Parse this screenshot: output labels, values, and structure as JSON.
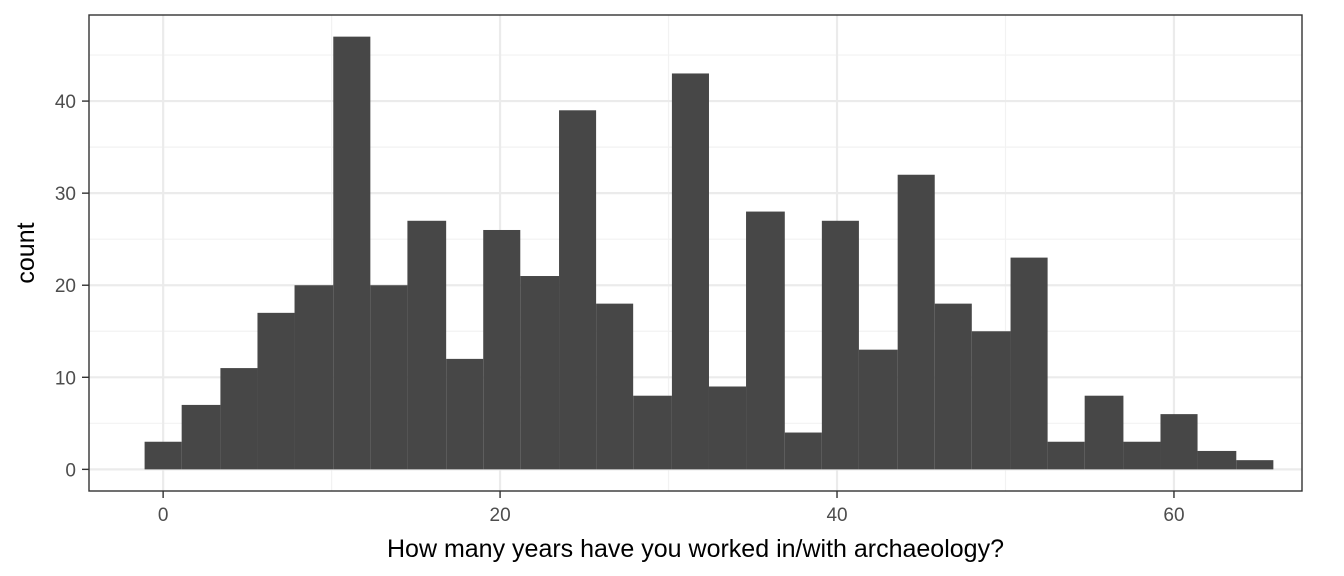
{
  "chart_data": {
    "type": "bar",
    "subtype": "histogram",
    "title": "",
    "xlabel": "How many years have you worked in/with archaeology?",
    "ylabel": "count",
    "x_ticks": [
      0,
      20,
      40,
      60
    ],
    "y_ticks": [
      0,
      10,
      20,
      30,
      40
    ],
    "xlim": [
      -4.4,
      67.6
    ],
    "ylim": [
      -2.35,
      49.35
    ],
    "grid": true,
    "theme": "bw",
    "bar_color": "#474747",
    "bin_width": 2.23,
    "bins": [
      {
        "x0": -1.1,
        "x1": 1.1,
        "count": 3
      },
      {
        "x0": 1.1,
        "x1": 3.4,
        "count": 7
      },
      {
        "x0": 3.4,
        "x1": 5.6,
        "count": 11
      },
      {
        "x0": 5.6,
        "x1": 7.8,
        "count": 17
      },
      {
        "x0": 7.8,
        "x1": 10.1,
        "count": 20
      },
      {
        "x0": 10.1,
        "x1": 12.3,
        "count": 47
      },
      {
        "x0": 12.3,
        "x1": 14.5,
        "count": 20
      },
      {
        "x0": 14.5,
        "x1": 16.8,
        "count": 27
      },
      {
        "x0": 16.8,
        "x1": 19.0,
        "count": 12
      },
      {
        "x0": 19.0,
        "x1": 21.2,
        "count": 26
      },
      {
        "x0": 21.2,
        "x1": 23.5,
        "count": 21
      },
      {
        "x0": 23.5,
        "x1": 25.7,
        "count": 39
      },
      {
        "x0": 25.7,
        "x1": 27.9,
        "count": 18
      },
      {
        "x0": 27.9,
        "x1": 30.2,
        "count": 8
      },
      {
        "x0": 30.2,
        "x1": 32.4,
        "count": 43
      },
      {
        "x0": 32.4,
        "x1": 34.6,
        "count": 9
      },
      {
        "x0": 34.6,
        "x1": 36.9,
        "count": 28
      },
      {
        "x0": 36.9,
        "x1": 39.1,
        "count": 4
      },
      {
        "x0": 39.1,
        "x1": 41.3,
        "count": 27
      },
      {
        "x0": 41.3,
        "x1": 43.6,
        "count": 13
      },
      {
        "x0": 43.6,
        "x1": 45.8,
        "count": 32
      },
      {
        "x0": 45.8,
        "x1": 48.0,
        "count": 18
      },
      {
        "x0": 48.0,
        "x1": 50.3,
        "count": 15
      },
      {
        "x0": 50.3,
        "x1": 52.5,
        "count": 23
      },
      {
        "x0": 52.5,
        "x1": 54.7,
        "count": 3
      },
      {
        "x0": 54.7,
        "x1": 57.0,
        "count": 8
      },
      {
        "x0": 57.0,
        "x1": 59.2,
        "count": 3
      },
      {
        "x0": 59.2,
        "x1": 61.4,
        "count": 6
      },
      {
        "x0": 61.4,
        "x1": 63.7,
        "count": 2
      },
      {
        "x0": 63.7,
        "x1": 65.9,
        "count": 1
      }
    ]
  }
}
